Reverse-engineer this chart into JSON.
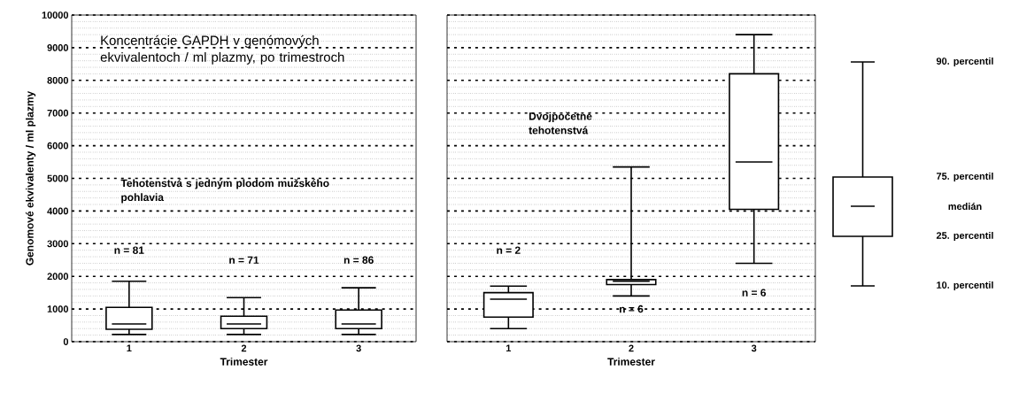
{
  "chart_data": [
    {
      "type": "box",
      "ylabel": "Genomové ekvivalenty / ml plazmy",
      "xlabel": "Trimester",
      "categories": [
        "1",
        "2",
        "3"
      ],
      "boxes": [
        {
          "low": 220,
          "q1": 380,
          "median": 540,
          "q3": 1050,
          "high": 1850
        },
        {
          "low": 220,
          "q1": 400,
          "median": 540,
          "q3": 780,
          "high": 1350
        },
        {
          "low": 220,
          "q1": 400,
          "median": 540,
          "q3": 970,
          "high": 1650
        }
      ],
      "ylim": [
        0,
        10000
      ],
      "yticks": [
        0,
        1000,
        2000,
        3000,
        4000,
        5000,
        6000,
        7000,
        8000,
        9000,
        10000
      ],
      "grid": "y",
      "annotations": [
        "Koncentrácie GAPDH v genómových ekvivalentoch / ml plazmy, po trimestroch",
        "Tehotenstvá s jedným plodom mužského pohlavia",
        "n = 81",
        "n = 71",
        "n = 86"
      ]
    },
    {
      "type": "box",
      "xlabel": "Trimester",
      "categories": [
        "1",
        "2",
        "3"
      ],
      "boxes": [
        {
          "low": 400,
          "q1": 750,
          "median": 1300,
          "q3": 1500,
          "high": 1700
        },
        {
          "low": 1400,
          "q1": 1750,
          "median": 1850,
          "q3": 1900,
          "high": 5350
        },
        {
          "low": 2400,
          "q1": 4050,
          "median": 5500,
          "q3": 8200,
          "high": 9400
        }
      ],
      "ylim": [
        0,
        10000
      ],
      "yticks": [
        0,
        1000,
        2000,
        3000,
        4000,
        5000,
        6000,
        7000,
        8000,
        9000,
        10000
      ],
      "grid": "y",
      "tick_labels": "x",
      "annotations": [
        "Dvojpočetné tehotenstvá",
        "n = 2",
        "n = 6",
        "n = 6"
      ]
    },
    {
      "type": "other",
      "annotations": [
        "90. percentil",
        "75. percentil",
        "medián",
        "25. percentil",
        "10. percentil"
      ]
    }
  ]
}
